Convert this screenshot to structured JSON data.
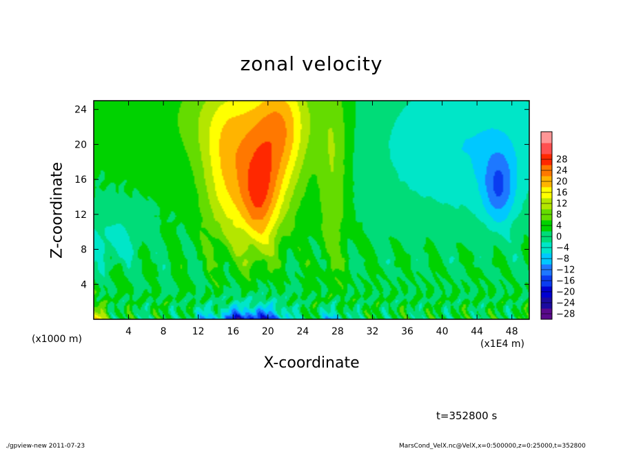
{
  "chart_data": {
    "type": "heatmap",
    "title": "zonal velocity",
    "xlabel": "X-coordinate",
    "ylabel": "Z-coordinate",
    "x_unit_note": "(x1E4 m)",
    "y_unit_note": "(x1000 m)",
    "xlim": [
      0,
      50
    ],
    "ylim": [
      0,
      25
    ],
    "x_ticks": [
      4,
      8,
      12,
      16,
      20,
      24,
      28,
      32,
      36,
      40,
      44,
      48
    ],
    "y_ticks": [
      4,
      8,
      12,
      16,
      20,
      24
    ],
    "colorbar": {
      "levels": [
        28,
        24,
        20,
        16,
        12,
        8,
        4,
        0,
        -4,
        -8,
        -12,
        -16,
        -20,
        -24,
        -28
      ],
      "vmin": -30,
      "vmax": 30,
      "colors": [
        "#5a0a8c",
        "#1a0aa0",
        "#0000d0",
        "#0a3cf0",
        "#1e78ff",
        "#00c8ff",
        "#00e6c8",
        "#00dc78",
        "#00d200",
        "#64dc00",
        "#b4e600",
        "#ffff00",
        "#ffb400",
        "#ff7800",
        "#ff2800",
        "#ff5050",
        "#ff9696"
      ]
    },
    "annotations": [
      "t=352800 s"
    ]
  },
  "footer": {
    "left": "./gpview-new  2011-07-23",
    "right": "MarsCond_VelX.nc@VelX,x=0:500000,z=0:25000,t=352800"
  }
}
